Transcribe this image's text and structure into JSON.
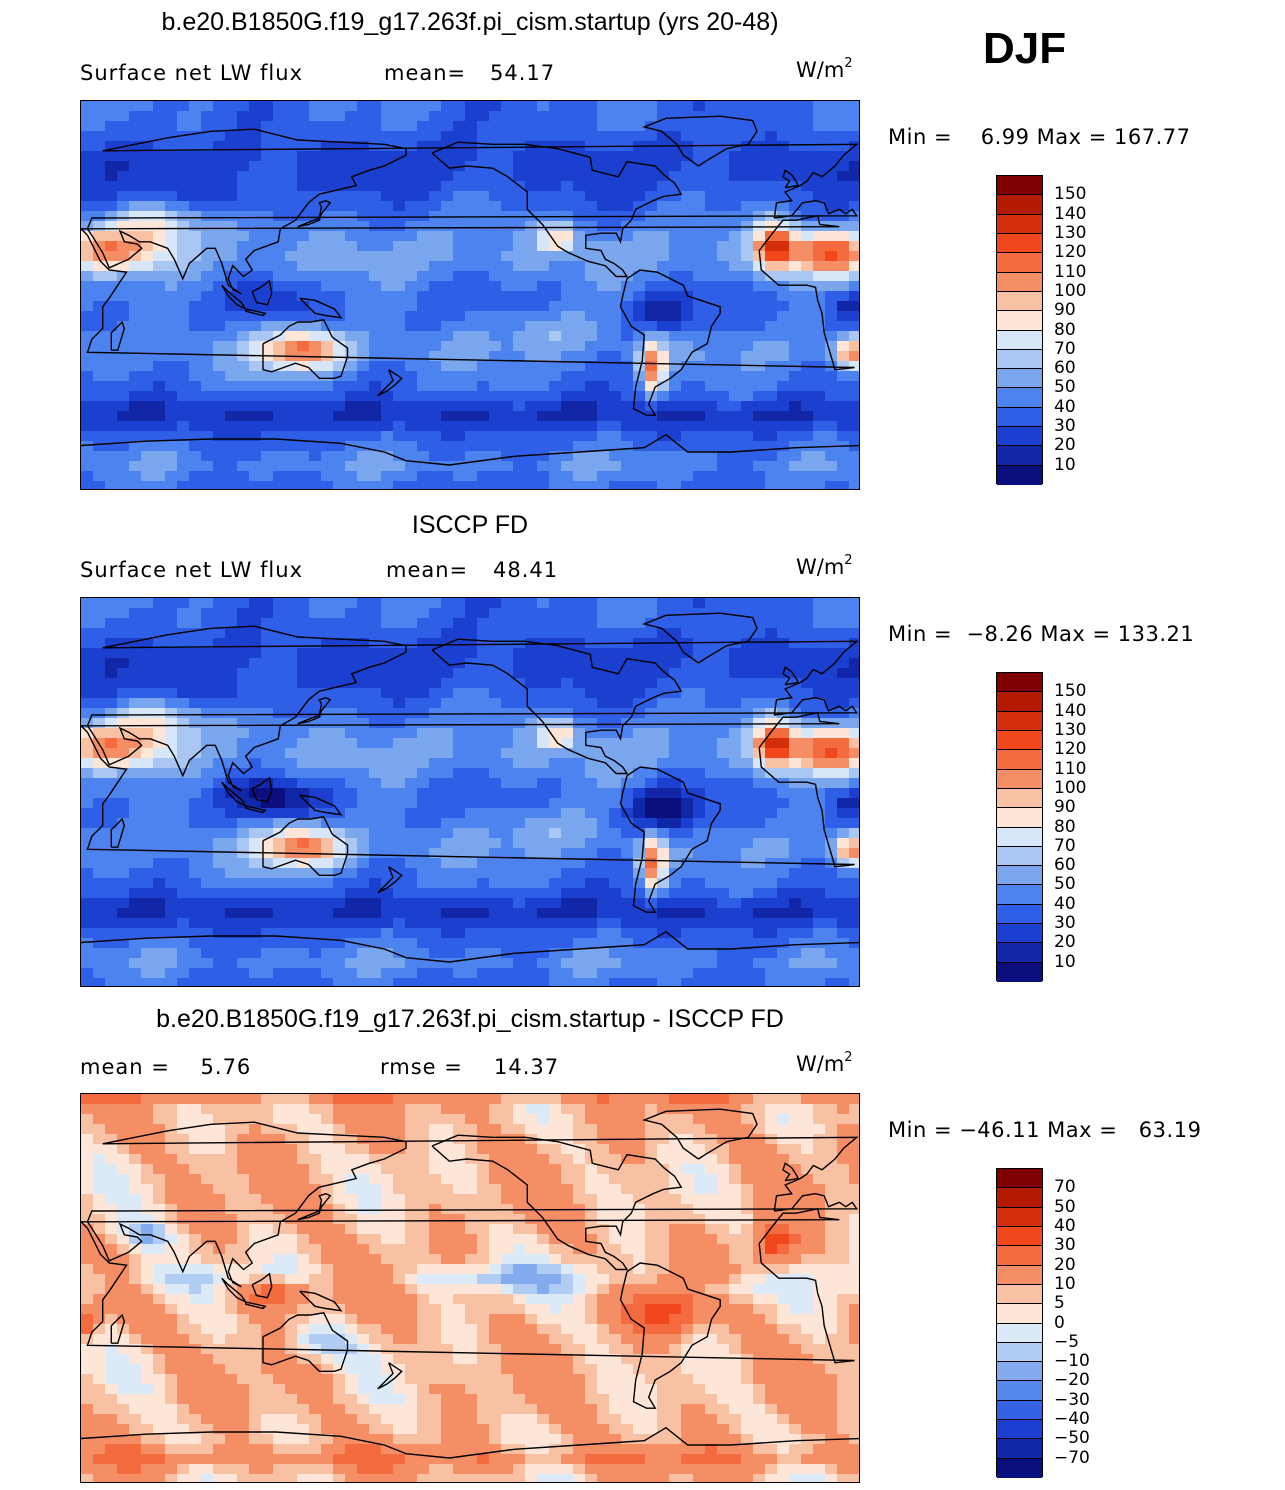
{
  "season": "DJF",
  "panels": [
    {
      "title": "b.e20.B1850G.f19_g17.263f.pi_cism.startup (yrs 20-48)",
      "left_label": "Surface net LW flux",
      "stat_label": "mean=",
      "stat_value": "54.17",
      "units": "W/m",
      "units_sup": "2",
      "minmax": "Min =    6.99 Max = 167.77",
      "colorbar_ticks": [
        "150",
        "140",
        "130",
        "120",
        "110",
        "100",
        "90",
        "80",
        "70",
        "60",
        "50",
        "40",
        "30",
        "20",
        "10"
      ],
      "palette": "lw"
    },
    {
      "title": "ISCCP FD",
      "left_label": "Surface net LW flux",
      "stat_label": "mean=",
      "stat_value": "48.41",
      "units": "W/m",
      "units_sup": "2",
      "minmax": "Min =  −8.26 Max = 133.21",
      "colorbar_ticks": [
        "150",
        "140",
        "130",
        "120",
        "110",
        "100",
        "90",
        "80",
        "70",
        "60",
        "50",
        "40",
        "30",
        "20",
        "10"
      ],
      "palette": "lw"
    },
    {
      "title": "b.e20.B1850G.f19_g17.263f.pi_cism.startup - ISCCP FD",
      "left_label": "mean =    5.76",
      "stat_label": "rmse =",
      "stat_value": "14.37",
      "units": "W/m",
      "units_sup": "2",
      "minmax": "Min = −46.11 Max =   63.19",
      "colorbar_ticks": [
        "70",
        "50",
        "40",
        "30",
        "20",
        "10",
        "5",
        "0",
        "−5",
        "−10",
        "−20",
        "−30",
        "−40",
        "−50",
        "−70"
      ],
      "palette": "diff"
    }
  ],
  "colors": {
    "lw": [
      "#7f0000",
      "#b31a00",
      "#d42f0b",
      "#f0481c",
      "#f36b3e",
      "#f68e65",
      "#f9c1a3",
      "#fde6d8",
      "#d7e6f8",
      "#a9c7f2",
      "#7aa6ee",
      "#4c83ee",
      "#2e5fe6",
      "#1b3fcf",
      "#1226a8",
      "#0a0f7d"
    ],
    "diff": [
      "#7f0000",
      "#b31a00",
      "#d42f0b",
      "#f0481c",
      "#f36b3e",
      "#f68e65",
      "#f9c1a3",
      "#fde6d8",
      "#dceaf7",
      "#b2cdf3",
      "#85abef",
      "#5788ed",
      "#3362e5",
      "#1b40cf",
      "#1028a8",
      "#090f7d"
    ]
  }
}
